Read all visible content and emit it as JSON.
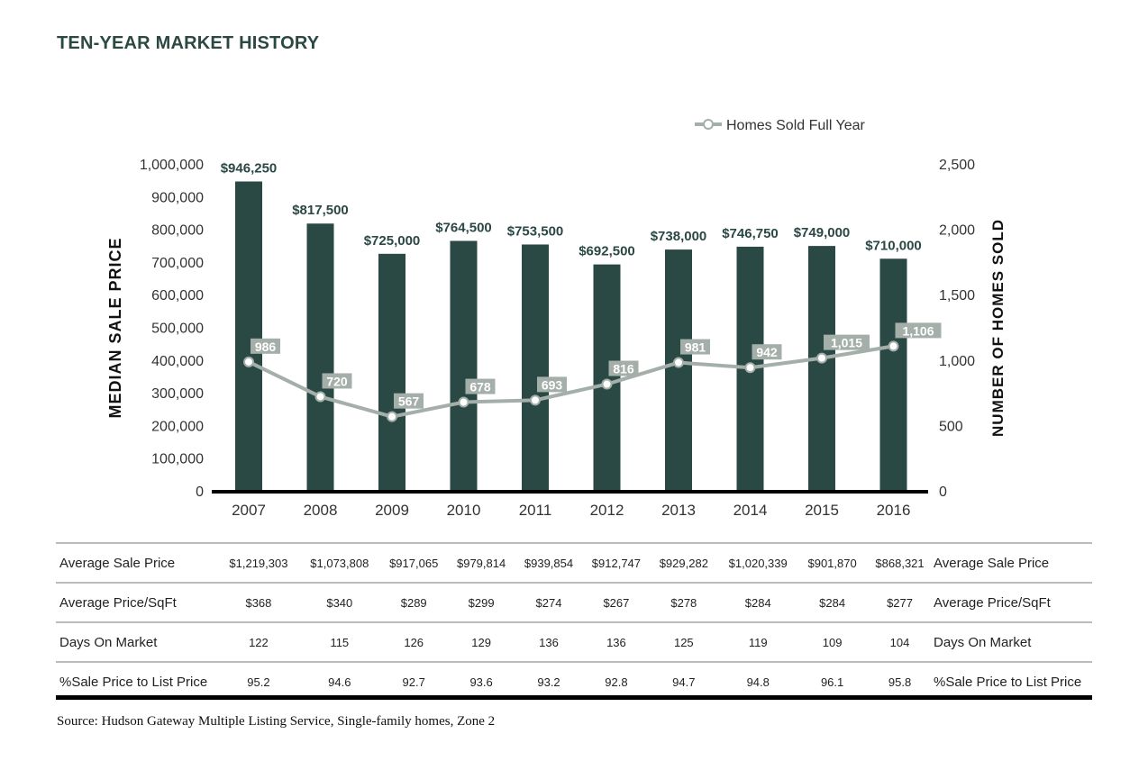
{
  "title": "TEN-YEAR MARKET HISTORY",
  "chart_data": {
    "type": "bar+line",
    "categories": [
      "2007",
      "2008",
      "2009",
      "2010",
      "2011",
      "2012",
      "2013",
      "2014",
      "2015",
      "2016"
    ],
    "series": [
      {
        "axis": "left",
        "type": "bar",
        "values": [
          946250,
          817500,
          725000,
          764500,
          753500,
          692500,
          738000,
          746750,
          749000,
          710000
        ],
        "labels": [
          "$946,250",
          "$817,500",
          "$725,000",
          "$764,500",
          "$753,500",
          "$692,500",
          "$738,000",
          "$746,750",
          "$749,000",
          "$710,000"
        ]
      },
      {
        "name": "Homes Sold Full Year",
        "axis": "right",
        "type": "line",
        "values": [
          986,
          720,
          567,
          678,
          693,
          816,
          981,
          942,
          1015,
          1106
        ],
        "labels": [
          "986",
          "720",
          "567",
          "678",
          "693",
          "816",
          "981",
          "942",
          "1,015",
          "1,106"
        ]
      }
    ],
    "ylabel": "MEDIAN SALE PRICE",
    "y2label": "NUMBER OF HOMES SOLD",
    "ylim": [
      0,
      1000000
    ],
    "y2lim": [
      0,
      2500
    ],
    "yticks": [
      "0",
      "100,000",
      "200,000",
      "300,000",
      "400,000",
      "500,000",
      "600,000",
      "700,000",
      "800,000",
      "900,000",
      "1,000,000"
    ],
    "y2ticks": [
      "0",
      "500",
      "1,000",
      "1,500",
      "2,000",
      "2,500"
    ],
    "legend": "top-right",
    "colors": {
      "bar": "#2a4844",
      "line": "#a5afaa"
    }
  },
  "table": {
    "rows": [
      {
        "label": "Average Sale Price",
        "values": [
          "$1,219,303",
          "$1,073,808",
          "$917,065",
          "$979,814",
          "$939,854",
          "$912,747",
          "$929,282",
          "$1,020,339",
          "$901,870",
          "$868,321"
        ]
      },
      {
        "label": "Average Price/SqFt",
        "values": [
          "$368",
          "$340",
          "$289",
          "$299",
          "$274",
          "$267",
          "$278",
          "$284",
          "$284",
          "$277"
        ]
      },
      {
        "label": "Days On Market",
        "values": [
          "122",
          "115",
          "126",
          "129",
          "136",
          "136",
          "125",
          "119",
          "109",
          "104"
        ]
      },
      {
        "label": "%Sale Price to List Price",
        "values": [
          "95.2",
          "94.6",
          "92.7",
          "93.6",
          "93.2",
          "92.8",
          "94.7",
          "94.8",
          "96.1",
          "95.8"
        ]
      }
    ]
  },
  "source": "Source: Hudson Gateway Multiple Listing Service, Single-family homes, Zone 2"
}
